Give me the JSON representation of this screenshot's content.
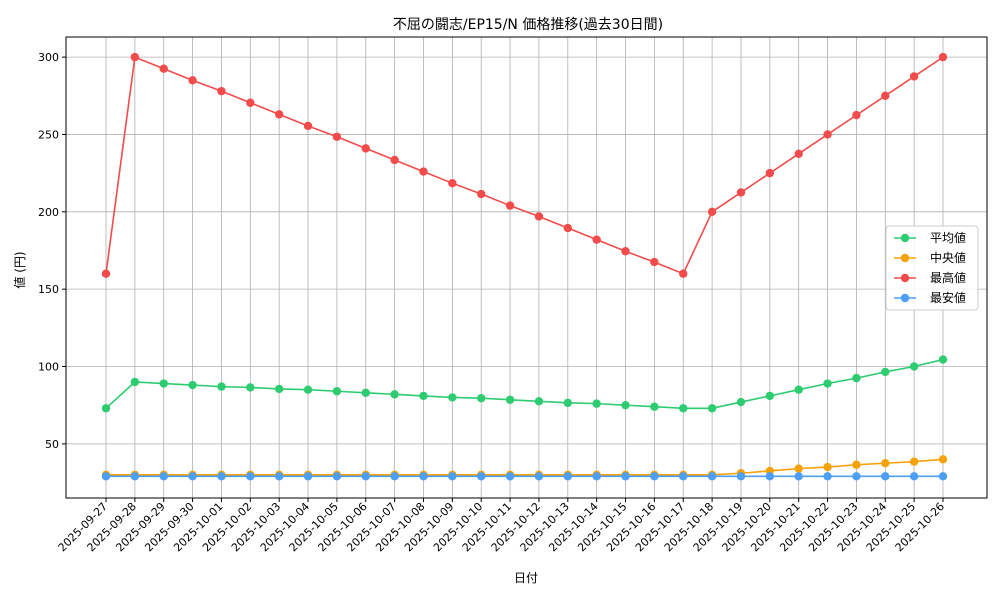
{
  "chart_data": {
    "type": "line",
    "title": "不屈の闘志/EP15/N 価格推移(過去30日間)",
    "xlabel": "日付",
    "ylabel": "値 (円)",
    "ylim": [
      15,
      313
    ],
    "yticks": [
      50,
      100,
      150,
      200,
      250,
      300
    ],
    "grid": true,
    "legend_position": "center-right",
    "categories": [
      "2025-09-27",
      "2025-09-28",
      "2025-09-29",
      "2025-09-30",
      "2025-10-01",
      "2025-10-02",
      "2025-10-03",
      "2025-10-04",
      "2025-10-05",
      "2025-10-06",
      "2025-10-07",
      "2025-10-08",
      "2025-10-09",
      "2025-10-10",
      "2025-10-11",
      "2025-10-12",
      "2025-10-13",
      "2025-10-14",
      "2025-10-15",
      "2025-10-16",
      "2025-10-17",
      "2025-10-18",
      "2025-10-19",
      "2025-10-20",
      "2025-10-21",
      "2025-10-22",
      "2025-10-23",
      "2025-10-24",
      "2025-10-25",
      "2025-10-26"
    ],
    "series": [
      {
        "name": "平均値",
        "color": "#2ecc71",
        "values": [
          73,
          90,
          89,
          88,
          87,
          86.5,
          85.5,
          85,
          84,
          83,
          82,
          81,
          80,
          79.5,
          78.5,
          77.5,
          76.5,
          76,
          75,
          74,
          73,
          73,
          77,
          81,
          85,
          89,
          92.5,
          96.5,
          100,
          104.5
        ]
      },
      {
        "name": "中央値",
        "color": "#f5a20a",
        "values": [
          30,
          30,
          30,
          30,
          30,
          30,
          30,
          30,
          30,
          30,
          30,
          30,
          30,
          30,
          30,
          30,
          30,
          30,
          30,
          30,
          30,
          30,
          31,
          32.5,
          34,
          35,
          36.5,
          37.5,
          38.5,
          40
        ]
      },
      {
        "name": "最高値",
        "color": "#f24b4b",
        "values": [
          160,
          300,
          292.5,
          285,
          278,
          270.5,
          263,
          255.5,
          248.5,
          241,
          233.5,
          226,
          218.5,
          211.5,
          204,
          197,
          189.5,
          182,
          174.5,
          167.5,
          160,
          200,
          212.5,
          225,
          237.5,
          250,
          262.5,
          275,
          287.5,
          300
        ]
      },
      {
        "name": "最安値",
        "color": "#4d9ef5",
        "values": [
          29,
          29,
          29,
          29,
          29,
          29,
          29,
          29,
          29,
          29,
          29,
          29,
          29,
          29,
          29,
          29,
          29,
          29,
          29,
          29,
          29,
          29,
          29,
          29,
          29,
          29,
          29,
          29,
          29,
          29
        ]
      }
    ]
  }
}
